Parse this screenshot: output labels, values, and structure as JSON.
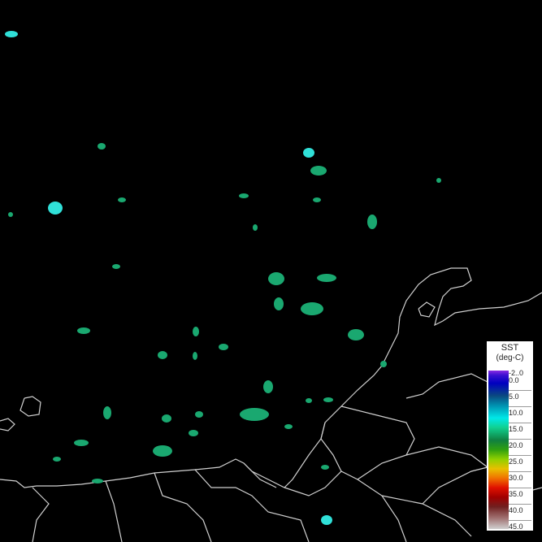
{
  "legend": {
    "title": "SST",
    "unit": "(deg-C)",
    "ticks": [
      "-2..0",
      "0.0",
      "5.0",
      "10.0",
      "15.0",
      "20.0",
      "25.0",
      "30.0",
      "35.0",
      "40.0",
      "45.0"
    ]
  },
  "colors": {
    "background": "#000000",
    "coast": "#d0d0d0",
    "sst_green": "#1aa870",
    "sst_cyan": "#30e0d8"
  }
}
